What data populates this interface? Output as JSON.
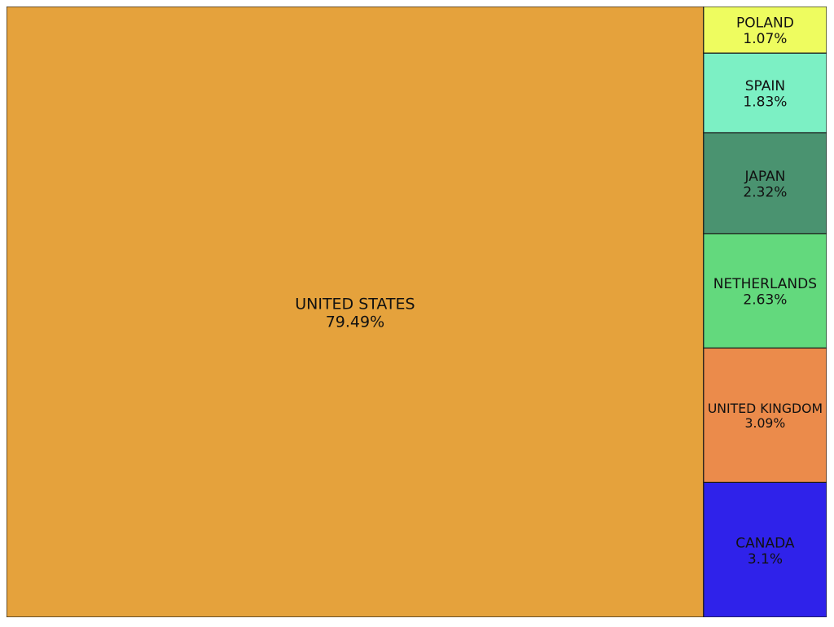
{
  "chart_data": {
    "type": "treemap",
    "items": [
      {
        "name": "UNITED STATES",
        "value": 79.49,
        "label": "79.49%",
        "color": "#E5A23C"
      },
      {
        "name": "CANADA",
        "value": 3.1,
        "label": "3.1%",
        "color": "#2F22EA"
      },
      {
        "name": "UNITED KINGDOM",
        "value": 3.09,
        "label": "3.09%",
        "color": "#EB8B4B"
      },
      {
        "name": "NETHERLANDS",
        "value": 2.63,
        "label": "2.63%",
        "color": "#63D97D"
      },
      {
        "name": "JAPAN",
        "value": 2.32,
        "label": "2.32%",
        "color": "#4A9370"
      },
      {
        "name": "SPAIN",
        "value": 1.83,
        "label": "1.83%",
        "color": "#7CF0C4"
      },
      {
        "name": "POLAND",
        "value": 1.07,
        "label": "1.07%",
        "color": "#EEFC5F"
      }
    ]
  }
}
